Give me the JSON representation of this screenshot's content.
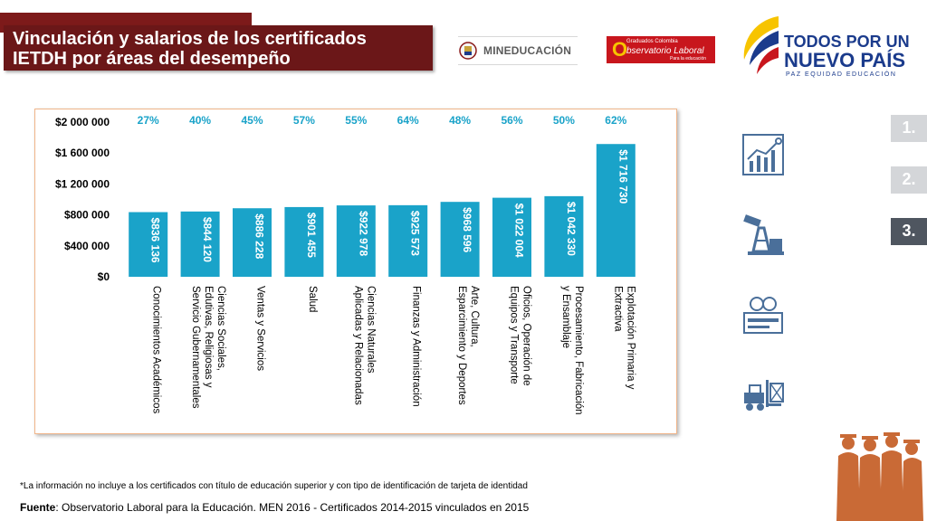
{
  "header": {
    "title_line1": "Vinculación y salarios de los certificados",
    "title_line2": "IETDH por áreas del desempeño"
  },
  "logos": {
    "mineducacion": "MINEDUCACIÓN",
    "observatorio_l1": "Graduados Colombia",
    "observatorio_l2": "bservatorio Laboral",
    "observatorio_l3": "Para la educación",
    "todos_l1": "TODOS POR UN",
    "todos_l2": "NUEVO PAÍS",
    "todos_l3": "PAZ   EQUIDAD   EDUCACIÓN"
  },
  "nav": {
    "items": [
      {
        "label": "1.",
        "active": false
      },
      {
        "label": "2.",
        "active": false
      },
      {
        "label": "3.",
        "active": true
      }
    ]
  },
  "colors": {
    "bar": "#1aa3c9",
    "pct": "#1aa3c9",
    "title_bg": "#6b1718"
  },
  "chart_data": {
    "type": "bar",
    "title": "",
    "ylim": [
      0,
      2000000
    ],
    "yticks": [
      0,
      400000,
      800000,
      1200000,
      1600000,
      2000000
    ],
    "ytick_labels": [
      "$0",
      "$400 000",
      "$800 000",
      "$1 200 000",
      "$1 600 000",
      "$2 000 000"
    ],
    "categories": [
      [
        "Conocimientos Académicos"
      ],
      [
        "Ciencias Sociales,",
        "Edutivas, Religiosas y",
        "Servicio Gubernamentales"
      ],
      [
        "Ventas y Servicios"
      ],
      [
        "Salud"
      ],
      [
        "Ciencias Naturales",
        "Aplicadas y Relacionadas"
      ],
      [
        "Finanzas y Administración"
      ],
      [
        "Arte, Cultura,",
        "Esparcimiento y Deportes"
      ],
      [
        "Oficios, Operación de",
        "Equipos y Transporte"
      ],
      [
        "Procesamiento, Fabricación",
        "y Ensamblaje"
      ],
      [
        "Explotación Primaria y",
        "Extractiva"
      ]
    ],
    "values": [
      836136,
      844120,
      886228,
      901455,
      922978,
      925573,
      968596,
      1022004,
      1042330,
      1716730
    ],
    "value_labels": [
      "$836 136",
      "$844 120",
      "$886 228",
      "$901 455",
      "$922 978",
      "$925 573",
      "$968 596",
      "$1 022 004",
      "$1 042 330",
      "$1 716 730"
    ],
    "vinculacion_pct": [
      "27%",
      "40%",
      "45%",
      "57%",
      "55%",
      "64%",
      "48%",
      "56%",
      "50%",
      "62%"
    ]
  },
  "footer": {
    "note": "*La información no incluye a los certificados con título de educación superior y con tipo de identificación de tarjeta de identidad",
    "source_bold": "Fuente",
    "source_text": ": Observatorio Laboral para la Educación. MEN 2016 - Certificados 2014-2015 vinculados en 2015"
  }
}
